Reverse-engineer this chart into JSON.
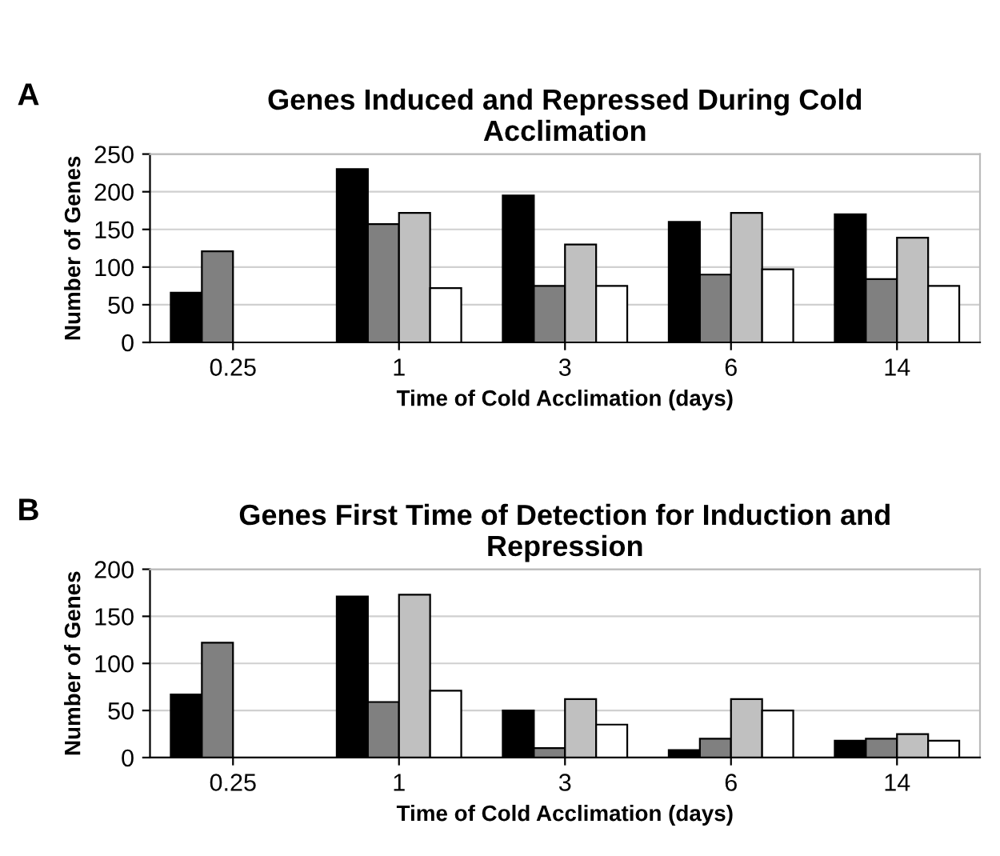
{
  "chart_data": [
    {
      "type": "bar",
      "title": "Genes Induced and Repressed During Cold\nAcclimation",
      "xlabel": "Time of Cold Acclimation (days)",
      "ylabel": "Number of Genes",
      "annotations": [
        "A"
      ],
      "categories": [
        "0.25",
        "1",
        "3",
        "6",
        "14"
      ],
      "ylim": [
        0,
        250
      ],
      "yticks": [
        0,
        50,
        100,
        150,
        200,
        250
      ],
      "grid": "y",
      "legend": false,
      "series": [
        {
          "color": "#000000",
          "values": [
            66,
            230,
            195,
            160,
            170
          ]
        },
        {
          "color": "#808080",
          "values": [
            121,
            157,
            75,
            90,
            84
          ]
        },
        {
          "color": "#c0c0c0",
          "values": [
            null,
            172,
            130,
            172,
            139
          ]
        },
        {
          "color": "#ffffff",
          "values": [
            null,
            72,
            75,
            97,
            75
          ]
        }
      ]
    },
    {
      "type": "bar",
      "title": "Genes First Time of Detection for Induction and\nRepression",
      "xlabel": "Time of Cold Acclimation (days)",
      "ylabel": "Number of Genes",
      "annotations": [
        "B"
      ],
      "categories": [
        "0.25",
        "1",
        "3",
        "6",
        "14"
      ],
      "ylim": [
        0,
        200
      ],
      "yticks": [
        0,
        50,
        100,
        150,
        200
      ],
      "grid": "y",
      "legend": false,
      "series": [
        {
          "color": "#000000",
          "values": [
            67,
            171,
            50,
            8,
            18
          ]
        },
        {
          "color": "#808080",
          "values": [
            122,
            59,
            10,
            20,
            20
          ]
        },
        {
          "color": "#c0c0c0",
          "values": [
            null,
            173,
            62,
            62,
            25
          ]
        },
        {
          "color": "#ffffff",
          "values": [
            null,
            71,
            35,
            50,
            18
          ]
        }
      ]
    }
  ]
}
